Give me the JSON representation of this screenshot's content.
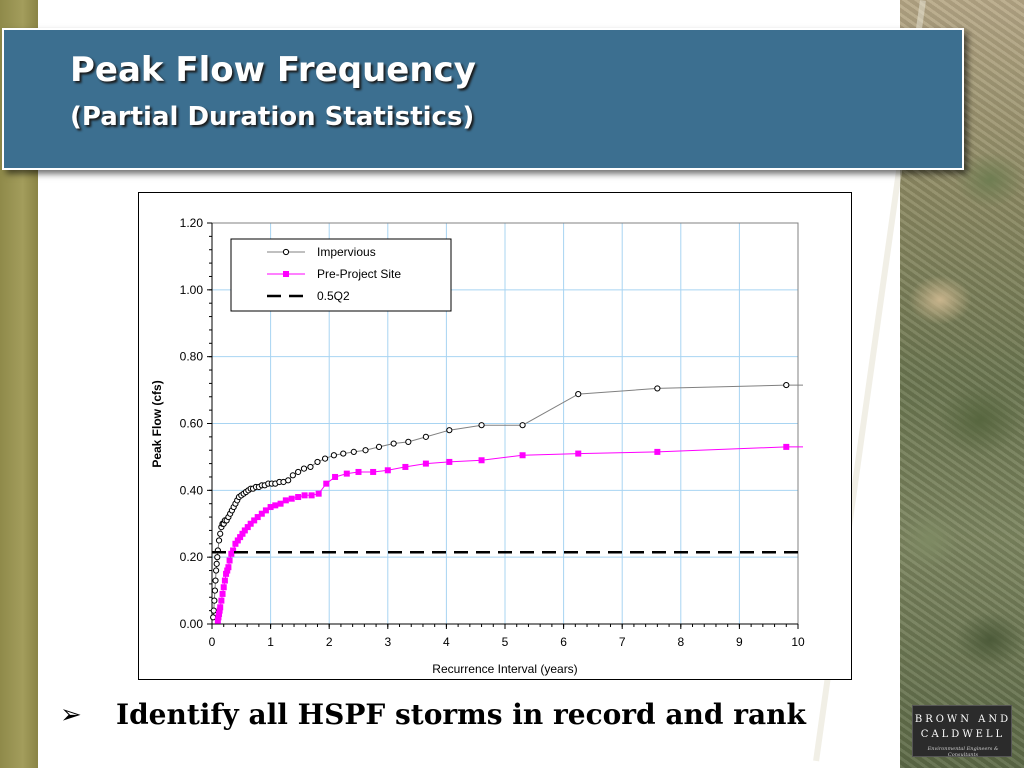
{
  "slide": {
    "title": "Peak Flow Frequency",
    "subtitle": "(Partial Duration Statistics)",
    "bullet_marker": "➢",
    "bullet": "Identify all HSPF storms in record and rank"
  },
  "logo": {
    "line1": "BROWN AND",
    "line2": "CALDWELL",
    "line3": "Environmental Engineers & Consultants"
  },
  "colors": {
    "title_bar": "#3c6f90",
    "impervious": "#808080",
    "pre_project": "#ff00ff",
    "q2": "#000000",
    "grid": "#a8d4f2"
  },
  "chart_data": {
    "type": "line",
    "xlabel": "Recurrence Interval (years)",
    "ylabel": "Peak Flow (cfs)",
    "xlim": [
      0,
      10
    ],
    "ylim": [
      0,
      1.2
    ],
    "xticks": [
      "0",
      "1",
      "2",
      "3",
      "4",
      "5",
      "6",
      "7",
      "8",
      "9",
      "10"
    ],
    "yticks": [
      "0.00",
      "0.20",
      "0.40",
      "0.60",
      "0.80",
      "1.00",
      "1.20"
    ],
    "grid": true,
    "legend_position": "top-left",
    "series": [
      {
        "name": "Impervious",
        "marker": "open-circle",
        "color": "#808080",
        "x": [
          0.02,
          0.03,
          0.04,
          0.05,
          0.06,
          0.07,
          0.08,
          0.09,
          0.1,
          0.12,
          0.14,
          0.16,
          0.18,
          0.2,
          0.22,
          0.25,
          0.28,
          0.31,
          0.34,
          0.37,
          0.4,
          0.43,
          0.46,
          0.5,
          0.54,
          0.58,
          0.62,
          0.66,
          0.7,
          0.75,
          0.8,
          0.85,
          0.9,
          0.96,
          1.02,
          1.08,
          1.15,
          1.22,
          1.3,
          1.38,
          1.47,
          1.57,
          1.68,
          1.8,
          1.93,
          2.08,
          2.24,
          2.42,
          2.62,
          2.85,
          3.1,
          3.35,
          3.65,
          4.05,
          4.6,
          5.3,
          6.25,
          7.6,
          9.8,
          10.1
        ],
        "y": [
          0.02,
          0.04,
          0.07,
          0.1,
          0.13,
          0.16,
          0.18,
          0.2,
          0.22,
          0.25,
          0.27,
          0.29,
          0.3,
          0.3,
          0.31,
          0.31,
          0.32,
          0.33,
          0.34,
          0.35,
          0.36,
          0.37,
          0.38,
          0.385,
          0.39,
          0.395,
          0.4,
          0.405,
          0.405,
          0.41,
          0.41,
          0.415,
          0.415,
          0.42,
          0.42,
          0.42,
          0.425,
          0.425,
          0.43,
          0.445,
          0.455,
          0.465,
          0.47,
          0.485,
          0.495,
          0.505,
          0.51,
          0.515,
          0.52,
          0.53,
          0.54,
          0.545,
          0.56,
          0.58,
          0.595,
          0.595,
          0.688,
          0.705,
          0.715,
          0.715
        ]
      },
      {
        "name": "Pre-Project Site",
        "marker": "filled-square",
        "color": "#ff00ff",
        "x": [
          0.1,
          0.11,
          0.12,
          0.13,
          0.14,
          0.16,
          0.18,
          0.2,
          0.22,
          0.24,
          0.26,
          0.28,
          0.3,
          0.33,
          0.36,
          0.4,
          0.44,
          0.48,
          0.52,
          0.56,
          0.61,
          0.66,
          0.72,
          0.78,
          0.85,
          0.92,
          1.0,
          1.08,
          1.17,
          1.26,
          1.36,
          1.47,
          1.58,
          1.7,
          1.82,
          1.95,
          2.1,
          2.3,
          2.5,
          2.75,
          3.0,
          3.3,
          3.65,
          4.05,
          4.6,
          5.3,
          6.25,
          7.6,
          9.8,
          10.1
        ],
        "y": [
          0.01,
          0.02,
          0.03,
          0.04,
          0.05,
          0.07,
          0.09,
          0.11,
          0.13,
          0.15,
          0.16,
          0.17,
          0.19,
          0.21,
          0.22,
          0.24,
          0.25,
          0.26,
          0.27,
          0.28,
          0.29,
          0.3,
          0.31,
          0.32,
          0.33,
          0.34,
          0.35,
          0.355,
          0.36,
          0.37,
          0.375,
          0.38,
          0.385,
          0.385,
          0.39,
          0.42,
          0.44,
          0.45,
          0.455,
          0.455,
          0.46,
          0.47,
          0.48,
          0.485,
          0.49,
          0.505,
          0.51,
          0.515,
          0.53,
          0.53
        ]
      },
      {
        "name": "0.5Q2",
        "marker": "none",
        "line": "dashed",
        "color": "#000000",
        "x": [
          0,
          10
        ],
        "y": [
          0.215,
          0.215
        ]
      }
    ]
  }
}
